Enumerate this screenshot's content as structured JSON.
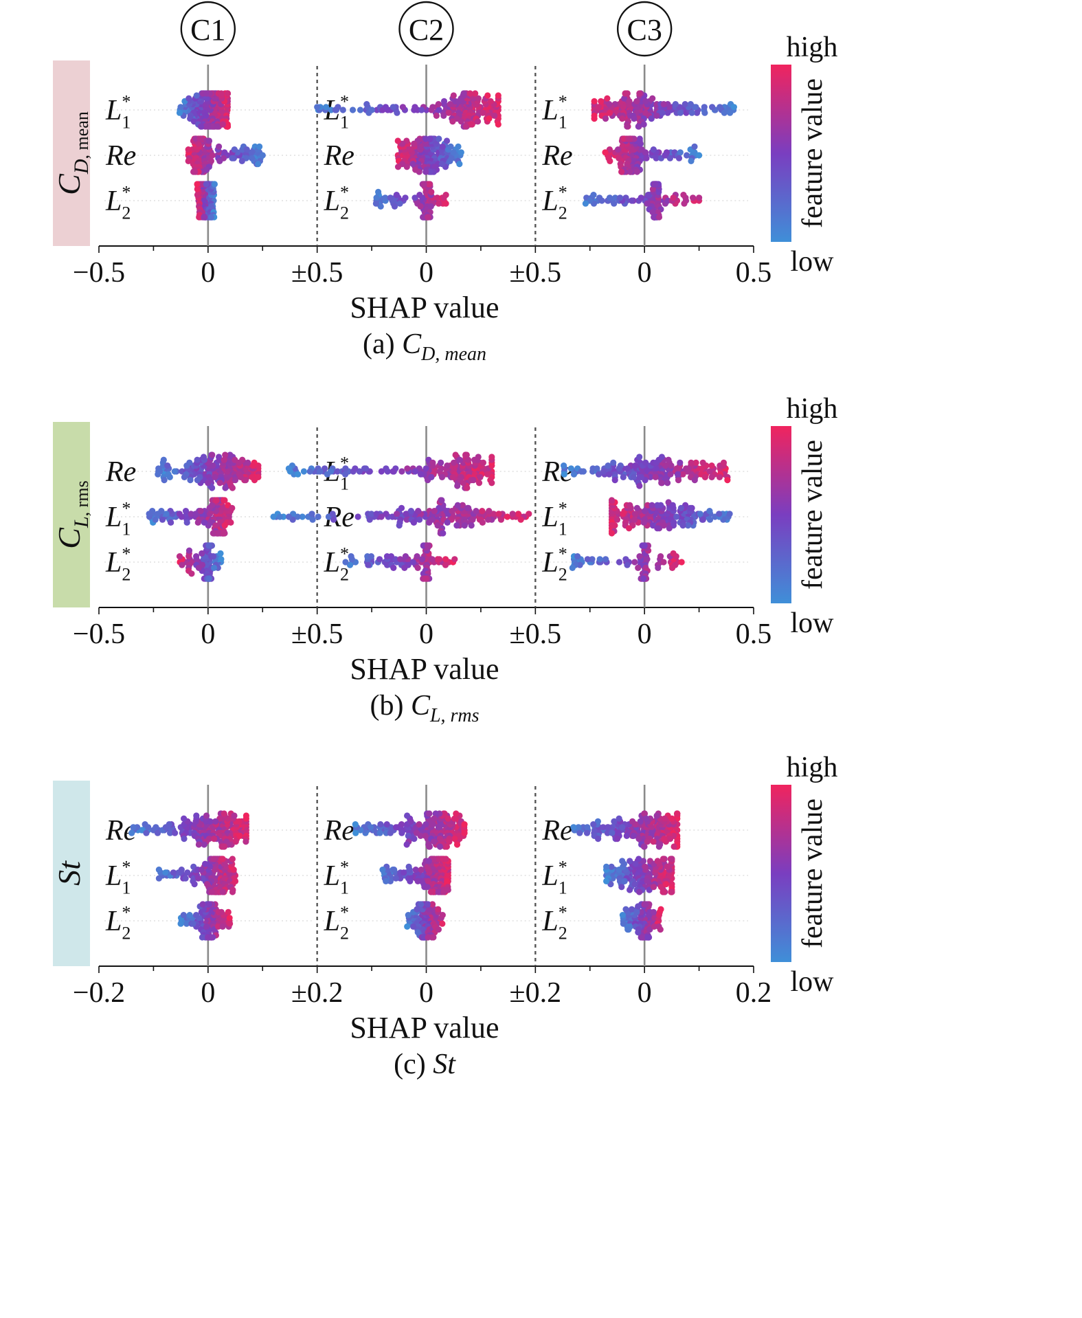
{
  "chart_data": {
    "type": "scatter",
    "subtype": "shap-beeswarm",
    "case_labels": [
      "C1",
      "C2",
      "C3"
    ],
    "colorbar": {
      "high": "high",
      "low": "low",
      "label": "feature value",
      "low_color": "#3f8fd8",
      "mid_color": "#7a3ec0",
      "high_color": "#f0245e"
    },
    "x_label": "SHAP value",
    "panels": [
      {
        "id": "a",
        "caption_prefix": "(a) ",
        "target": {
          "base": "C",
          "sub": "D, mean"
        },
        "band_color": "#ecd0d3",
        "xlim": [
          -0.5,
          0.5
        ],
        "tick_labels": [
          "−0.5",
          "0",
          "±0.5",
          "0",
          "±0.5",
          "0",
          "0.5"
        ],
        "groups": [
          {
            "case": "C1",
            "rows": [
              {
                "feature": {
                  "base": "L",
                  "sub": "1",
                  "sup": "*"
                },
                "min": -0.13,
                "max": 0.09,
                "center": 0.03,
                "width": 0.05,
                "lowside": "left",
                "density": 1.0
              },
              {
                "feature": {
                  "base": "Re"
                },
                "min": -0.09,
                "max": 0.25,
                "center": -0.04,
                "width": 0.02,
                "lowside": "right",
                "density": 0.7
              },
              {
                "feature": {
                  "base": "L",
                  "sub": "2",
                  "sup": "*"
                },
                "min": -0.05,
                "max": 0.03,
                "center": 0.0,
                "width": 0.01,
                "lowside": "right",
                "density": 0.5
              }
            ]
          },
          {
            "case": "C2",
            "rows": [
              {
                "feature": {
                  "base": "L",
                  "sub": "1",
                  "sup": "*"
                },
                "min": -0.5,
                "max": 0.33,
                "center": 0.2,
                "width": 0.08,
                "lowside": "left",
                "density": 1.0
              },
              {
                "feature": {
                  "base": "Re"
                },
                "min": -0.13,
                "max": 0.16,
                "center": 0.0,
                "width": 0.05,
                "lowside": "right",
                "density": 0.9
              },
              {
                "feature": {
                  "base": "L",
                  "sub": "2",
                  "sup": "*"
                },
                "min": -0.23,
                "max": 0.09,
                "center": 0.0,
                "width": 0.01,
                "lowside": "left",
                "density": 0.5
              }
            ]
          },
          {
            "case": "C3",
            "rows": [
              {
                "feature": {
                  "base": "L",
                  "sub": "1",
                  "sup": "*"
                },
                "min": -0.23,
                "max": 0.41,
                "center": -0.05,
                "width": 0.1,
                "lowside": "right",
                "density": 1.0
              },
              {
                "feature": {
                  "base": "Re"
                },
                "min": -0.18,
                "max": 0.25,
                "center": -0.07,
                "width": 0.03,
                "lowside": "right",
                "density": 0.7
              },
              {
                "feature": {
                  "base": "L",
                  "sub": "2",
                  "sup": "*"
                },
                "min": -0.27,
                "max": 0.25,
                "center": 0.05,
                "width": 0.01,
                "lowside": "left",
                "density": 0.6
              }
            ]
          }
        ]
      },
      {
        "id": "b",
        "caption_prefix": "(b) ",
        "target": {
          "base": "C",
          "sub": "L, rms"
        },
        "band_color": "#c8dcaa",
        "xlim": [
          -0.5,
          0.5
        ],
        "tick_labels": [
          "−0.5",
          "0",
          "±0.5",
          "0",
          "±0.5",
          "0",
          "0.5"
        ],
        "groups": [
          {
            "case": "C1",
            "rows": [
              {
                "feature": {
                  "base": "Re"
                },
                "min": -0.23,
                "max": 0.23,
                "center": 0.08,
                "width": 0.09,
                "lowside": "left",
                "density": 1.0
              },
              {
                "feature": {
                  "base": "L",
                  "sub": "1",
                  "sup": "*"
                },
                "min": -0.27,
                "max": 0.11,
                "center": 0.05,
                "width": 0.02,
                "lowside": "left",
                "density": 0.8
              },
              {
                "feature": {
                  "base": "L",
                  "sub": "2",
                  "sup": "*"
                },
                "min": -0.13,
                "max": 0.06,
                "center": 0.0,
                "width": 0.01,
                "lowside": "right",
                "density": 0.5
              }
            ]
          },
          {
            "case": "C2",
            "rows": [
              {
                "feature": {
                  "base": "L",
                  "sub": "1",
                  "sup": "*"
                },
                "min": -0.63,
                "max": 0.3,
                "center": 0.18,
                "width": 0.08,
                "lowside": "left",
                "density": 1.0
              },
              {
                "feature": {
                  "base": "Re"
                },
                "min": -0.7,
                "max": 0.47,
                "center": 0.12,
                "width": 0.13,
                "lowside": "left",
                "density": 1.0
              },
              {
                "feature": {
                  "base": "L",
                  "sub": "2",
                  "sup": "*"
                },
                "min": -0.37,
                "max": 0.13,
                "center": 0.0,
                "width": 0.01,
                "lowside": "left",
                "density": 0.5
              }
            ]
          },
          {
            "case": "C3",
            "rows": [
              {
                "feature": {
                  "base": "Re"
                },
                "min": -0.37,
                "max": 0.38,
                "center": 0.05,
                "width": 0.12,
                "lowside": "left",
                "density": 1.0
              },
              {
                "feature": {
                  "base": "L",
                  "sub": "1",
                  "sup": "*"
                },
                "min": -0.15,
                "max": 0.39,
                "center": 0.0,
                "width": 0.13,
                "lowside": "right",
                "density": 1.0
              },
              {
                "feature": {
                  "base": "L",
                  "sub": "2",
                  "sup": "*"
                },
                "min": -0.33,
                "max": 0.17,
                "center": 0.0,
                "width": 0.01,
                "lowside": "left",
                "density": 0.5
              }
            ]
          }
        ]
      },
      {
        "id": "c",
        "caption_prefix": "(c) ",
        "target": {
          "base": "St"
        },
        "band_color": "#cfe7ea",
        "xlim": [
          -0.2,
          0.2
        ],
        "tick_labels": [
          "−0.2",
          "0",
          "±0.2",
          "0",
          "±0.2",
          "0",
          "0.2"
        ],
        "groups": [
          {
            "case": "C1",
            "rows": [
              {
                "feature": {
                  "base": "Re"
                },
                "min": -0.14,
                "max": 0.07,
                "center": 0.02,
                "width": 0.03,
                "lowside": "left",
                "density": 1.0
              },
              {
                "feature": {
                  "base": "L",
                  "sub": "1",
                  "sup": "*"
                },
                "min": -0.09,
                "max": 0.05,
                "center": 0.02,
                "width": 0.015,
                "lowside": "left",
                "density": 0.8
              },
              {
                "feature": {
                  "base": "L",
                  "sub": "2",
                  "sup": "*"
                },
                "min": -0.05,
                "max": 0.04,
                "center": 0.0,
                "width": 0.01,
                "lowside": "left",
                "density": 0.5
              }
            ]
          },
          {
            "case": "C2",
            "rows": [
              {
                "feature": {
                  "base": "Re"
                },
                "min": -0.13,
                "max": 0.07,
                "center": 0.02,
                "width": 0.03,
                "lowside": "left",
                "density": 1.0
              },
              {
                "feature": {
                  "base": "L",
                  "sub": "1",
                  "sup": "*"
                },
                "min": -0.08,
                "max": 0.04,
                "center": 0.02,
                "width": 0.015,
                "lowside": "left",
                "density": 0.8
              },
              {
                "feature": {
                  "base": "L",
                  "sub": "2",
                  "sup": "*"
                },
                "min": -0.035,
                "max": 0.03,
                "center": 0.0,
                "width": 0.01,
                "lowside": "left",
                "density": 0.5
              }
            ]
          },
          {
            "case": "C3",
            "rows": [
              {
                "feature": {
                  "base": "Re"
                },
                "min": -0.13,
                "max": 0.06,
                "center": 0.02,
                "width": 0.03,
                "lowside": "left",
                "density": 1.0
              },
              {
                "feature": {
                  "base": "L",
                  "sub": "1",
                  "sup": "*"
                },
                "min": -0.07,
                "max": 0.05,
                "center": 0.0,
                "width": 0.04,
                "lowside": "left",
                "density": 0.9
              },
              {
                "feature": {
                  "base": "L",
                  "sub": "2",
                  "sup": "*"
                },
                "min": -0.04,
                "max": 0.03,
                "center": 0.0,
                "width": 0.01,
                "lowside": "left",
                "density": 0.5
              }
            ]
          }
        ]
      }
    ]
  }
}
